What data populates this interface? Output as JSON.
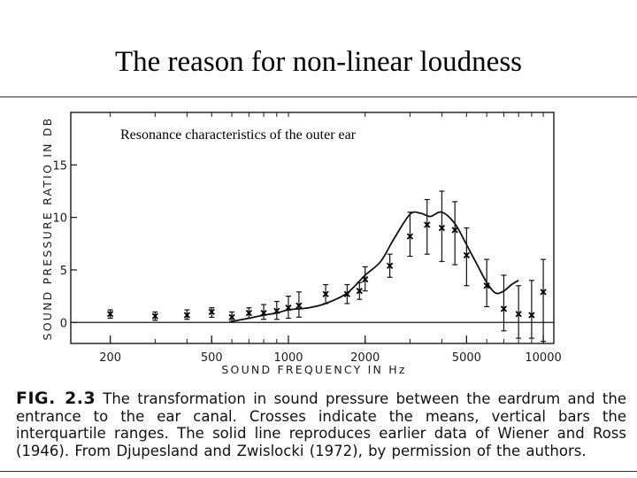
{
  "slide": {
    "title": "The reason for non-linear loudness"
  },
  "caption": {
    "figure_label": "FIG. 2.3",
    "text": "The transformation in sound pressure between the eardrum and the entrance to the ear canal. Crosses indicate the means, vertical bars the interquartile ranges. The solid line reproduces earlier data of Wiener and Ross (1946). From Djupesland and Zwislocki (1972), by permission of the authors."
  },
  "chart_data": {
    "type": "scatter",
    "title": "Resonance characteristics of the outer ear",
    "xlabel": "SOUND FREQUENCY IN Hz",
    "ylabel": "SOUND PRESSURE RATIO IN DB",
    "x_scale": "log",
    "xlim": [
      140,
      11000
    ],
    "ylim": [
      -2,
      20
    ],
    "x_ticks": [
      200,
      500,
      1000,
      2000,
      5000,
      10000
    ],
    "x_tick_labels": [
      "200",
      "500",
      "1000",
      "2000",
      "5000",
      "10000"
    ],
    "y_ticks": [
      0,
      5,
      10,
      15
    ],
    "y_tick_labels": [
      "0",
      "5",
      "10",
      "15"
    ],
    "grid": false,
    "series": [
      {
        "kind": "means_with_interquartile_bars",
        "points": [
          {
            "x": 200,
            "y": 0.8,
            "low": 0.4,
            "high": 1.2
          },
          {
            "x": 300,
            "y": 0.6,
            "low": 0.2,
            "high": 1.0
          },
          {
            "x": 400,
            "y": 0.7,
            "low": 0.3,
            "high": 1.2
          },
          {
            "x": 500,
            "y": 1.0,
            "low": 0.5,
            "high": 1.4
          },
          {
            "x": 600,
            "y": 0.5,
            "low": 0.1,
            "high": 1.0
          },
          {
            "x": 700,
            "y": 0.9,
            "low": 0.4,
            "high": 1.4
          },
          {
            "x": 800,
            "y": 0.9,
            "low": 0.3,
            "high": 1.7
          },
          {
            "x": 900,
            "y": 1.1,
            "low": 0.3,
            "high": 2.0
          },
          {
            "x": 1000,
            "y": 1.4,
            "low": 0.4,
            "high": 2.5
          },
          {
            "x": 1100,
            "y": 1.6,
            "low": 0.5,
            "high": 2.9
          },
          {
            "x": 1400,
            "y": 2.7,
            "low": 1.8,
            "high": 3.6
          },
          {
            "x": 1700,
            "y": 2.7,
            "low": 1.8,
            "high": 3.6
          },
          {
            "x": 1900,
            "y": 3.0,
            "low": 2.2,
            "high": 3.8
          },
          {
            "x": 2000,
            "y": 4.1,
            "low": 3.0,
            "high": 5.3
          },
          {
            "x": 2500,
            "y": 5.4,
            "low": 4.3,
            "high": 6.5
          },
          {
            "x": 3000,
            "y": 8.2,
            "low": 6.3,
            "high": 10.5
          },
          {
            "x": 3500,
            "y": 9.3,
            "low": 6.5,
            "high": 11.7
          },
          {
            "x": 4000,
            "y": 9.0,
            "low": 5.8,
            "high": 12.5
          },
          {
            "x": 4500,
            "y": 8.8,
            "low": 5.5,
            "high": 11.5
          },
          {
            "x": 5000,
            "y": 6.4,
            "low": 3.5,
            "high": 9.0
          },
          {
            "x": 6000,
            "y": 3.5,
            "low": 1.5,
            "high": 6.0
          },
          {
            "x": 7000,
            "y": 1.3,
            "low": -0.8,
            "high": 4.5
          },
          {
            "x": 8000,
            "y": 0.8,
            "low": -1.5,
            "high": 3.5
          },
          {
            "x": 9000,
            "y": 0.7,
            "low": -1.5,
            "high": 4.0
          },
          {
            "x": 10000,
            "y": 2.9,
            "low": -1.8,
            "high": 6.0
          }
        ]
      },
      {
        "kind": "reference_curve",
        "points": [
          {
            "x": 600,
            "y": 0.1
          },
          {
            "x": 700,
            "y": 0.4
          },
          {
            "x": 800,
            "y": 0.7
          },
          {
            "x": 900,
            "y": 0.9
          },
          {
            "x": 1000,
            "y": 1.2
          },
          {
            "x": 1200,
            "y": 1.4
          },
          {
            "x": 1400,
            "y": 1.8
          },
          {
            "x": 1700,
            "y": 2.8
          },
          {
            "x": 2000,
            "y": 4.5
          },
          {
            "x": 2300,
            "y": 5.8
          },
          {
            "x": 2600,
            "y": 8.0
          },
          {
            "x": 3000,
            "y": 10.3
          },
          {
            "x": 3300,
            "y": 10.4
          },
          {
            "x": 3600,
            "y": 10.1
          },
          {
            "x": 4000,
            "y": 10.5
          },
          {
            "x": 4500,
            "y": 9.4
          },
          {
            "x": 5000,
            "y": 7.4
          },
          {
            "x": 5500,
            "y": 5.5
          },
          {
            "x": 6000,
            "y": 3.8
          },
          {
            "x": 6500,
            "y": 2.8
          },
          {
            "x": 7000,
            "y": 3.0
          },
          {
            "x": 7500,
            "y": 3.6
          },
          {
            "x": 8000,
            "y": 4.0
          }
        ]
      }
    ]
  }
}
